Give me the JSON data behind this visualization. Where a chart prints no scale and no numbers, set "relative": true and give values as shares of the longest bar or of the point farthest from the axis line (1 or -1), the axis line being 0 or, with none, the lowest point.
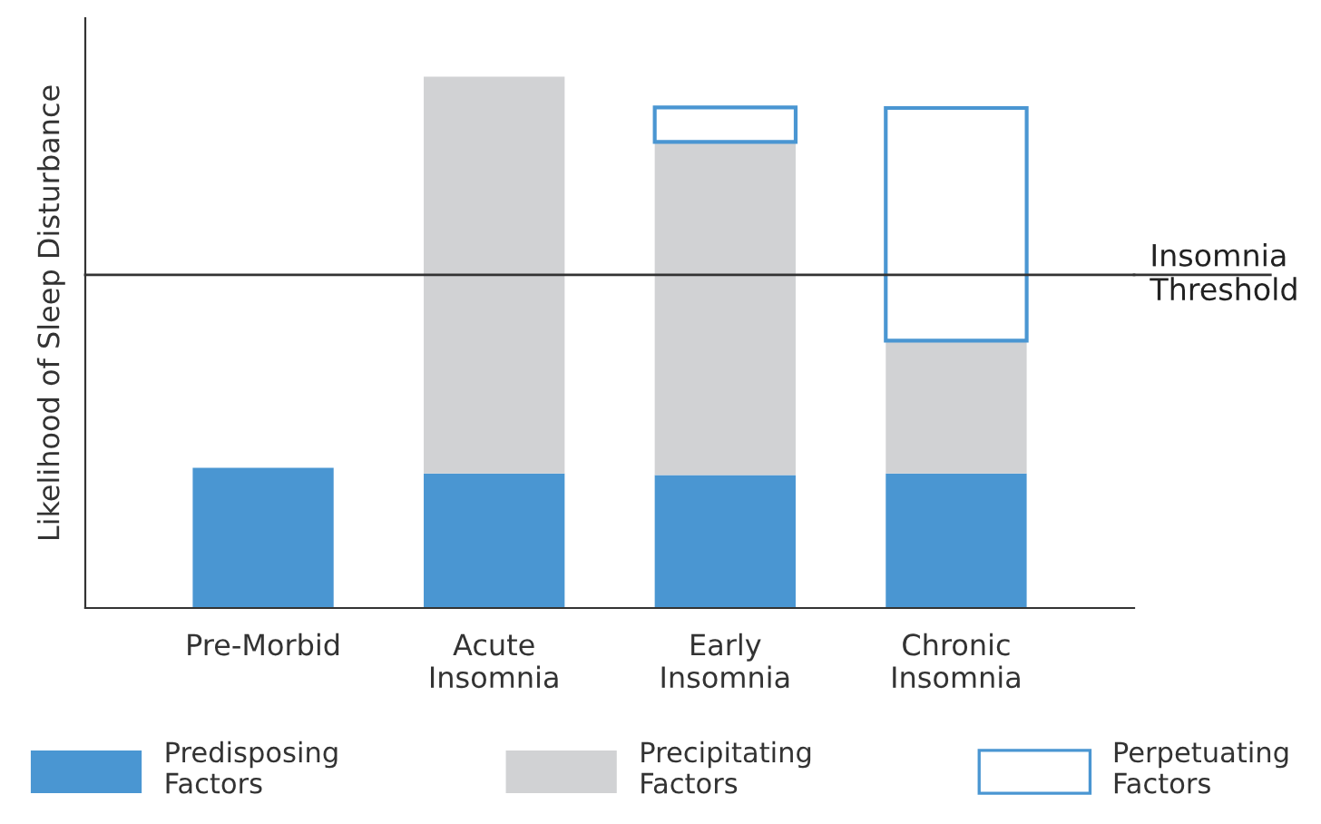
{
  "chart_data": {
    "type": "bar",
    "stacked": true,
    "relative": true,
    "ylabel": "Likelihood of Sleep Disturbance",
    "categories": [
      "Pre-Morbid",
      "Acute\nInsomnia",
      "Early\nInsomnia",
      "Chronic\nInsomnia"
    ],
    "series": [
      {
        "name": "Predisposing\nFactors",
        "color": "#4a96d2",
        "values": [
          0.264,
          0.253,
          0.25,
          0.253
        ]
      },
      {
        "name": "Precipitating\nFactors",
        "color": "#d1d2d4",
        "values": [
          null,
          0.747,
          0.627,
          0.25
        ]
      },
      {
        "name": "Perpetuating\nFactors",
        "color": "#4a96d2",
        "line_style": "solid",
        "values": [
          null,
          null,
          0.065,
          0.438
        ]
      }
    ],
    "ref_lines": [
      {
        "axis": "y",
        "value": 0.627,
        "label": "Insomnia\nThreshold",
        "color": "#333333",
        "line_style": "solid"
      }
    ],
    "legend": "bottom",
    "grid": false
  }
}
